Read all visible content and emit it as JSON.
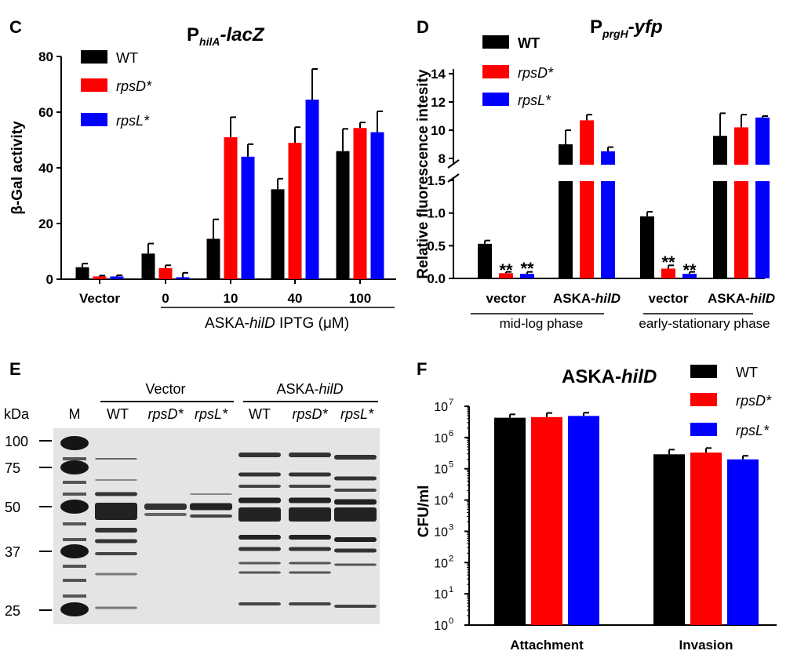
{
  "panels": {
    "C": {
      "label": "C",
      "title_pre": "P",
      "title_sub": "hilA",
      "title_post": "-lacZ"
    },
    "D": {
      "label": "D",
      "title_pre": "P",
      "title_sub": "prgH",
      "title_post": "-yfp"
    },
    "E": {
      "label": "E",
      "kda": "kDa",
      "marker_lane": "M",
      "group_vector": "Vector",
      "group_hild_pre": "ASKA-",
      "group_hild_it": "hilD",
      "lanes": [
        "WT",
        "rpsD*",
        "rpsL*",
        "WT",
        "rpsD*",
        "rpsL*"
      ],
      "ladder": [
        "100",
        "75",
        "50",
        "37",
        "25"
      ]
    },
    "F": {
      "label": "F",
      "title_pre": "ASKA-",
      "title_it": "hilD"
    }
  },
  "legend": {
    "wt": "WT",
    "rpsd": "rpsD*",
    "rpsl": "rpsL*"
  },
  "colors": {
    "wt": "#000000",
    "rpsd": "#ff0000",
    "rpsl": "#0000ff",
    "gel_bg": "#e4e4e4",
    "band": "#2a2a2a"
  },
  "chart_data": [
    {
      "panel": "C",
      "type": "bar",
      "ylabel": "β-Gal activity",
      "ylim": [
        0,
        80
      ],
      "yticks": [
        0,
        20,
        40,
        60,
        80
      ],
      "categories": [
        "Vector",
        "0",
        "10",
        "40",
        "100"
      ],
      "xgroup_label_pre": "ASKA-",
      "xgroup_label_it": "hilD",
      "xgroup_label_post": " IPTG (μM)",
      "series": [
        {
          "name": "WT",
          "values": [
            4.3,
            9.2,
            14.5,
            32.3,
            46.0
          ],
          "errors": [
            1.3,
            3.6,
            7.0,
            3.8,
            8.0
          ]
        },
        {
          "name": "rpsD*",
          "values": [
            1.0,
            4.0,
            51.0,
            49.0,
            54.3
          ],
          "errors": [
            0.3,
            1.0,
            7.2,
            5.6,
            2.0
          ]
        },
        {
          "name": "rpsL*",
          "values": [
            1.0,
            0.7,
            44.0,
            64.5,
            52.8
          ],
          "errors": [
            0.4,
            1.6,
            4.5,
            11.0,
            7.5
          ]
        }
      ]
    },
    {
      "panel": "D",
      "type": "bar",
      "ylabel": "Relative fluorescence intesity",
      "axis_break": [
        1.5,
        7.5
      ],
      "yticks_low": [
        "0.0",
        "0.5",
        "1.0",
        "1.5"
      ],
      "yticks_high": [
        "8",
        "10",
        "12",
        "14"
      ],
      "categories_pre": [
        "vector",
        "ASKA-",
        "vector",
        "ASKA-"
      ],
      "categories_it": [
        "",
        "hilD",
        "",
        "hilD"
      ],
      "phases": [
        "mid-log phase",
        "early-stationary phase"
      ],
      "significance": [
        "**",
        "**",
        "",
        "**",
        "**"
      ],
      "series": [
        {
          "name": "WT",
          "values": [
            0.53,
            9.0,
            0.95,
            9.6
          ],
          "errors": [
            0.05,
            1.0,
            0.07,
            1.6
          ]
        },
        {
          "name": "rpsD*",
          "values": [
            0.08,
            10.7,
            0.15,
            10.2
          ],
          "errors": [
            0.02,
            0.4,
            0.05,
            0.9
          ]
        },
        {
          "name": "rpsL*",
          "values": [
            0.07,
            8.5,
            0.07,
            10.9
          ],
          "errors": [
            0.03,
            0.3,
            0.03,
            0.1
          ]
        }
      ]
    },
    {
      "panel": "F",
      "type": "bar",
      "scale": "log",
      "ylabel": "CFU/ml",
      "ylim": [
        1,
        10000000
      ],
      "yticks": [
        "10",
        "10",
        "10",
        "10",
        "10",
        "10",
        "10",
        "10"
      ],
      "ytick_exps": [
        "0",
        "1",
        "2",
        "3",
        "4",
        "5",
        "6",
        "7"
      ],
      "categories": [
        "Attachment",
        "Invasion"
      ],
      "series": [
        {
          "name": "WT",
          "values": [
            4300000,
            290000
          ],
          "errors": [
            1200000,
            120000
          ]
        },
        {
          "name": "rpsD*",
          "values": [
            4500000,
            330000
          ],
          "errors": [
            1600000,
            130000
          ]
        },
        {
          "name": "rpsL*",
          "values": [
            4900000,
            200000
          ],
          "errors": [
            1300000,
            60000
          ]
        }
      ]
    }
  ]
}
